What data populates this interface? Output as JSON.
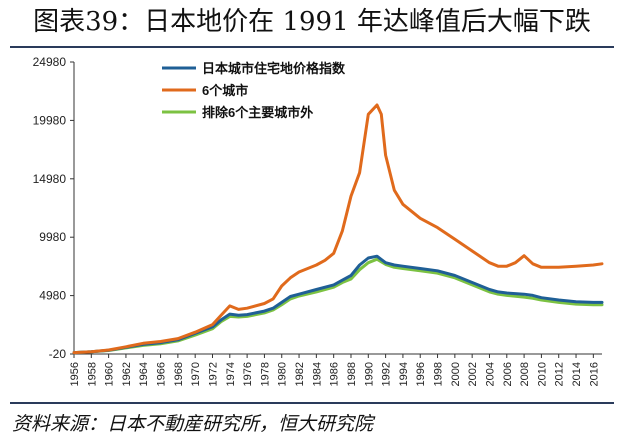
{
  "header": {
    "title": "图表39：日本地价在 1991 年达峰值后大幅下跌"
  },
  "footer": {
    "source": "资料来源：日本不動産研究所，恒大研究院"
  },
  "chart_data": {
    "type": "line",
    "title": "",
    "xlabel": "",
    "ylabel": "",
    "ylim": [
      -20,
      24980
    ],
    "yticks": [
      "-20",
      "4980",
      "9980",
      "14980",
      "19980",
      "24980"
    ],
    "ytick_values": [
      -20,
      4980,
      9980,
      14980,
      19980,
      24980
    ],
    "xlim": [
      1956,
      2017
    ],
    "xticks": [
      "1956",
      "1958",
      "1960",
      "1962",
      "1964",
      "1966",
      "1968",
      "1970",
      "1972",
      "1974",
      "1976",
      "1978",
      "1980",
      "1982",
      "1984",
      "1986",
      "1988",
      "1990",
      "1992",
      "1994",
      "1996",
      "1998",
      "2000",
      "2002",
      "2004",
      "2006",
      "2008",
      "2010",
      "2012",
      "2014",
      "2016"
    ],
    "grid": false,
    "legend_position": "top-left",
    "series": [
      {
        "name": "日本城市住宅地价格指数",
        "color": "#1f5f96",
        "points": [
          [
            1956,
            100
          ],
          [
            1958,
            180
          ],
          [
            1960,
            300
          ],
          [
            1962,
            550
          ],
          [
            1964,
            800
          ],
          [
            1966,
            950
          ],
          [
            1968,
            1200
          ],
          [
            1970,
            1750
          ],
          [
            1972,
            2300
          ],
          [
            1973,
            2900
          ],
          [
            1974,
            3400
          ],
          [
            1975,
            3300
          ],
          [
            1976,
            3350
          ],
          [
            1978,
            3650
          ],
          [
            1979,
            3900
          ],
          [
            1980,
            4400
          ],
          [
            1981,
            4900
          ],
          [
            1982,
            5100
          ],
          [
            1984,
            5500
          ],
          [
            1986,
            5900
          ],
          [
            1987,
            6300
          ],
          [
            1988,
            6700
          ],
          [
            1989,
            7600
          ],
          [
            1990,
            8200
          ],
          [
            1991,
            8350
          ],
          [
            1992,
            7800
          ],
          [
            1993,
            7600
          ],
          [
            1994,
            7500
          ],
          [
            1996,
            7300
          ],
          [
            1998,
            7100
          ],
          [
            2000,
            6700
          ],
          [
            2002,
            6100
          ],
          [
            2004,
            5500
          ],
          [
            2005,
            5300
          ],
          [
            2006,
            5200
          ],
          [
            2008,
            5100
          ],
          [
            2009,
            5000
          ],
          [
            2010,
            4800
          ],
          [
            2012,
            4600
          ],
          [
            2014,
            4450
          ],
          [
            2016,
            4400
          ],
          [
            2017,
            4400
          ]
        ]
      },
      {
        "name": "6个城市",
        "color": "#e06a1c",
        "points": [
          [
            1956,
            100
          ],
          [
            1958,
            180
          ],
          [
            1960,
            320
          ],
          [
            1962,
            600
          ],
          [
            1964,
            900
          ],
          [
            1966,
            1050
          ],
          [
            1968,
            1300
          ],
          [
            1970,
            1850
          ],
          [
            1972,
            2500
          ],
          [
            1973,
            3300
          ],
          [
            1974,
            4100
          ],
          [
            1975,
            3800
          ],
          [
            1976,
            3900
          ],
          [
            1978,
            4300
          ],
          [
            1979,
            4700
          ],
          [
            1980,
            5800
          ],
          [
            1981,
            6500
          ],
          [
            1982,
            7000
          ],
          [
            1984,
            7600
          ],
          [
            1985,
            8000
          ],
          [
            1986,
            8600
          ],
          [
            1987,
            10500
          ],
          [
            1988,
            13500
          ],
          [
            1989,
            15500
          ],
          [
            1990,
            20500
          ],
          [
            1991,
            21300
          ],
          [
            1991.5,
            20500
          ],
          [
            1992,
            17000
          ],
          [
            1993,
            14000
          ],
          [
            1994,
            12800
          ],
          [
            1996,
            11600
          ],
          [
            1998,
            10800
          ],
          [
            2000,
            9800
          ],
          [
            2002,
            8800
          ],
          [
            2004,
            7800
          ],
          [
            2005,
            7500
          ],
          [
            2006,
            7500
          ],
          [
            2007,
            7800
          ],
          [
            2008,
            8400
          ],
          [
            2009,
            7700
          ],
          [
            2010,
            7400
          ],
          [
            2012,
            7400
          ],
          [
            2014,
            7500
          ],
          [
            2016,
            7600
          ],
          [
            2017,
            7700
          ]
        ]
      },
      {
        "name": "排除6个主要城市外",
        "color": "#7cc242",
        "points": [
          [
            1956,
            100
          ],
          [
            1958,
            170
          ],
          [
            1960,
            280
          ],
          [
            1962,
            500
          ],
          [
            1964,
            720
          ],
          [
            1966,
            850
          ],
          [
            1968,
            1100
          ],
          [
            1970,
            1600
          ],
          [
            1972,
            2150
          ],
          [
            1973,
            2750
          ],
          [
            1974,
            3200
          ],
          [
            1975,
            3150
          ],
          [
            1976,
            3200
          ],
          [
            1978,
            3500
          ],
          [
            1979,
            3750
          ],
          [
            1980,
            4200
          ],
          [
            1981,
            4700
          ],
          [
            1982,
            4950
          ],
          [
            1984,
            5300
          ],
          [
            1986,
            5700
          ],
          [
            1987,
            6100
          ],
          [
            1988,
            6400
          ],
          [
            1989,
            7200
          ],
          [
            1990,
            7800
          ],
          [
            1991,
            8100
          ],
          [
            1992,
            7650
          ],
          [
            1993,
            7400
          ],
          [
            1994,
            7300
          ],
          [
            1996,
            7100
          ],
          [
            1998,
            6900
          ],
          [
            2000,
            6500
          ],
          [
            2002,
            5900
          ],
          [
            2004,
            5300
          ],
          [
            2005,
            5100
          ],
          [
            2006,
            5000
          ],
          [
            2008,
            4850
          ],
          [
            2009,
            4750
          ],
          [
            2010,
            4600
          ],
          [
            2012,
            4400
          ],
          [
            2014,
            4250
          ],
          [
            2016,
            4200
          ],
          [
            2017,
            4200
          ]
        ]
      }
    ]
  }
}
